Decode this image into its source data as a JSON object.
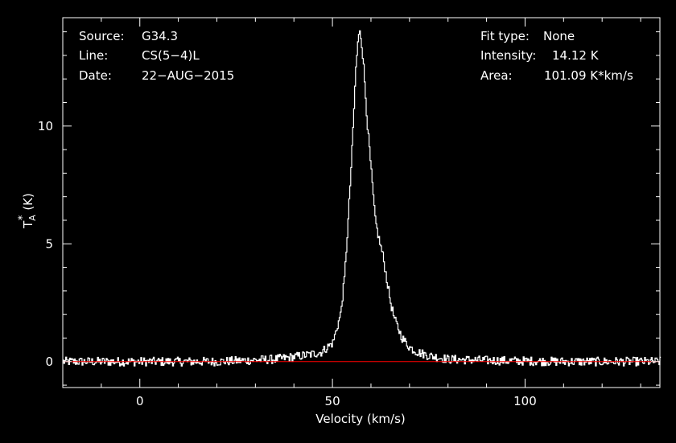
{
  "header_left": [
    {
      "label": "Source:",
      "value": "G34.3"
    },
    {
      "label": "Line:",
      "value": "CS(5−4)L"
    },
    {
      "label": "Date:",
      "value": "22−AUG−2015"
    }
  ],
  "header_right": [
    {
      "label": "Fit type:",
      "value": "None"
    },
    {
      "label": "Intensity:",
      "value": "14.12 K"
    },
    {
      "label": "Area:",
      "value": "101.09 K*km/s"
    }
  ],
  "colors": {
    "background": "#000000",
    "axes": "#ffffff",
    "spectrum": "#ffffff",
    "baseline": "#ff0000"
  },
  "chart_data": {
    "type": "line",
    "xlabel": "Velocity (km/s)",
    "ylabel": "T",
    "ylabel_sub": "A",
    "ylabel_sup": "*",
    "ylabel_unit": "(K)",
    "xlim": [
      -20,
      135
    ],
    "ylim": [
      -1.1,
      14.6
    ],
    "x_ticks": [
      0,
      50,
      100
    ],
    "y_ticks": [
      0,
      5,
      10
    ],
    "baseline": 0,
    "grid": false,
    "series": [
      {
        "x": [
          -20,
          0,
          20,
          35,
          40,
          44,
          47,
          50,
          52,
          53,
          54,
          55,
          56,
          56.5,
          57,
          57.5,
          58,
          59,
          60,
          61,
          62,
          63,
          64,
          65,
          66,
          67,
          68,
          70,
          72,
          75,
          80,
          90,
          110,
          135
        ],
        "values": [
          0,
          0,
          0,
          0.1,
          0.2,
          0.3,
          0.4,
          0.8,
          2.0,
          3.5,
          6.0,
          9.0,
          12.5,
          13.5,
          14.12,
          13.5,
          12.5,
          10.0,
          8.0,
          6.0,
          5.2,
          4.5,
          3.5,
          2.5,
          1.8,
          1.4,
          1.0,
          0.6,
          0.4,
          0.25,
          0.1,
          0.05,
          0,
          0
        ]
      }
    ]
  }
}
